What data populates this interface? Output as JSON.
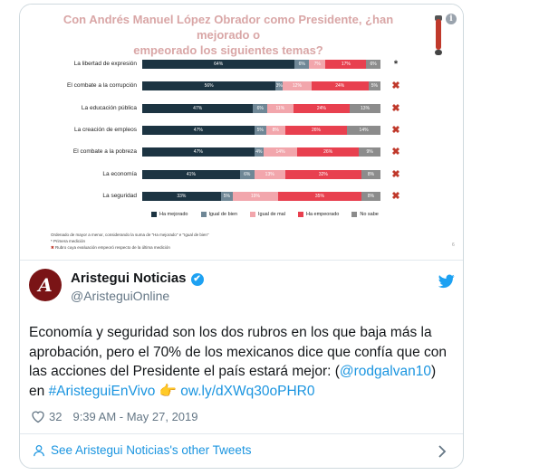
{
  "chart": {
    "title_line1": "Con Andrés Manuel López Obrador como Presidente, ¿han mejorado o",
    "title_line2": "empeorado los siguientes temas?",
    "info_glyph": "i",
    "page_number": "6",
    "legend": [
      {
        "label": "Ha mejorado",
        "color": "#1c3442"
      },
      {
        "label": "Igual de bien",
        "color": "#6f8796"
      },
      {
        "label": "Igual de mal",
        "color": "#f2a6ac"
      },
      {
        "label": "Ha empeorado",
        "color": "#e8404f"
      },
      {
        "label": "No sabe",
        "color": "#8c8c8c"
      }
    ],
    "note_line1": "Ordenado de mayor a menor, considerando la suma de \"Ha mejorado\" e \"Igual de bien\"",
    "note_line2": "Primera medición",
    "note_line3": "Rubro cuya evaluación empeoró respecto de la última medición",
    "note_symbol_star": "*",
    "note_symbol_x": "✖"
  },
  "chart_data": {
    "type": "bar",
    "stacked": true,
    "orientation": "horizontal",
    "title": "Con Andrés Manuel López Obrador como Presidente, ¿han mejorado o empeorado los siguientes temas?",
    "categories": [
      "La libertad de expresión",
      "El combate a la corrupción",
      "La educación pública",
      "La creación de empleos",
      "El combate a la pobreza",
      "La economía",
      "La seguridad"
    ],
    "series": [
      {
        "name": "Ha mejorado",
        "values": [
          64,
          56,
          47,
          47,
          47,
          41,
          33
        ],
        "labels": [
          "64%",
          "56%",
          "47%",
          "47%",
          "47%",
          "41%",
          "33%"
        ]
      },
      {
        "name": "Igual de bien",
        "values": [
          6,
          3,
          6,
          5,
          4,
          6,
          5
        ],
        "labels": [
          "6%",
          "3%",
          "6%",
          "5%",
          "4%",
          "6%",
          "5%"
        ]
      },
      {
        "name": "Igual de mal",
        "values": [
          7,
          12,
          11,
          8,
          14,
          13,
          19
        ],
        "labels": [
          "7%",
          "12%",
          "11%",
          "8%",
          "14%",
          "13%",
          "19%"
        ]
      },
      {
        "name": "Ha empeorado",
        "values": [
          17,
          24,
          24,
          26,
          26,
          32,
          35
        ],
        "labels": [
          "17%",
          "24%",
          "24%",
          "26%",
          "26%",
          "32%",
          "35%"
        ]
      },
      {
        "name": "No sabe",
        "values": [
          6,
          5,
          13,
          14,
          9,
          8,
          8
        ],
        "labels": [
          "6%",
          "5%",
          "13%",
          "14%",
          "9%",
          "8%",
          "8%"
        ]
      }
    ],
    "row_marks": [
      "*",
      "✖",
      "✖",
      "✖",
      "✖",
      "✖",
      "✖"
    ],
    "xlim": [
      0,
      100
    ]
  },
  "tweet": {
    "name": "Aristegui Noticias",
    "verified_glyph": "✔",
    "handle": "@AristeguiOnline",
    "avatar_letter": "A",
    "text_part1": "Economía y seguridad son los dos rubros en los que baja más la aprobación, pero el 70% de los mexicanos dice que confía que con las acciones del Presidente el país estará mejor: (",
    "mention": "@rodgalvan10",
    "text_part2": ") en ",
    "hashtag": "#AristeguiEnVivo",
    "emoji": "👉",
    "url": "ow.ly/dXWq30oPHR0",
    "likes": "32",
    "timestamp": "9:39 AM - May 27, 2019",
    "footer_link": "See Aristegui Noticias's other Tweets"
  },
  "colors": {
    "accent": "#1b95e0",
    "x_mark": "#c0392b"
  }
}
